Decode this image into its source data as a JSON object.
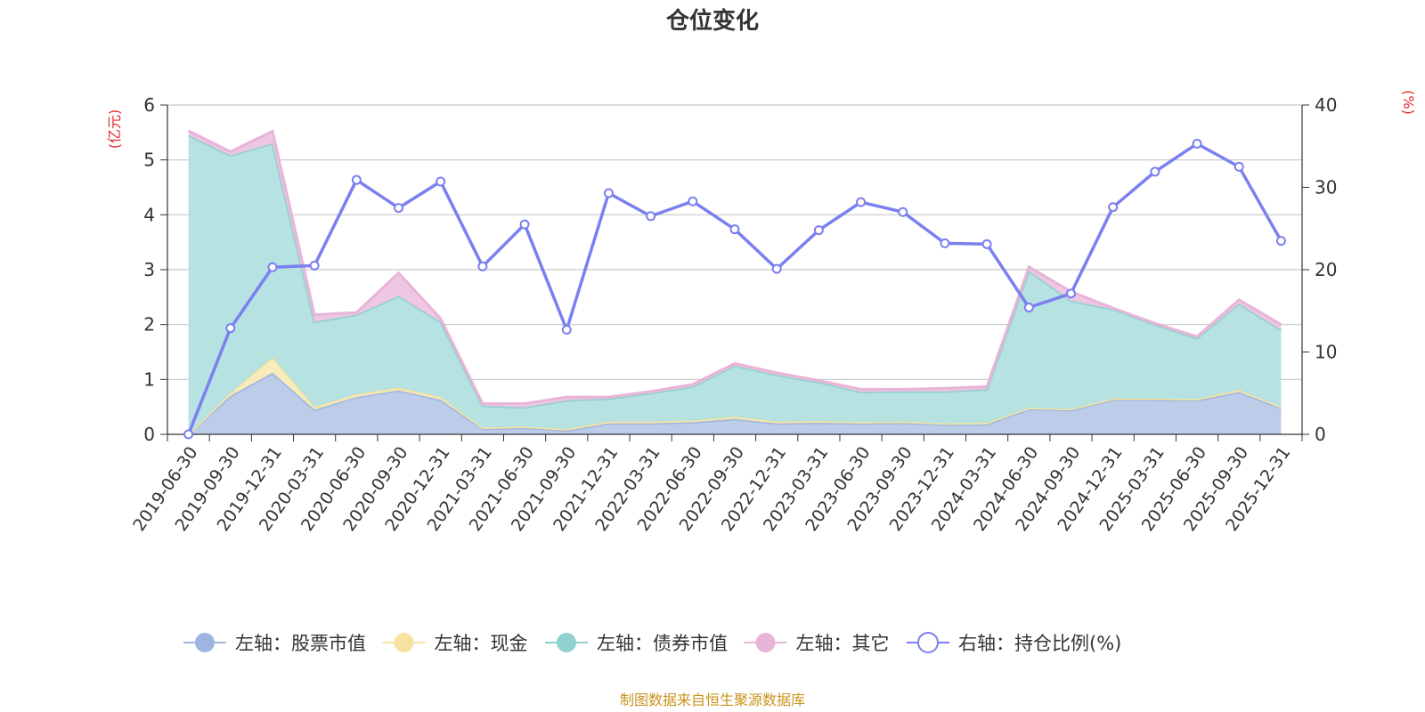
{
  "title": "仓位变化",
  "source": "制图数据来自恒生聚源数据库",
  "left_axis_unit": "(亿元)",
  "right_axis_unit": "(%)",
  "chart_data": {
    "type": "area",
    "title": "仓位变化",
    "categories": [
      "2019-06-30",
      "2019-09-30",
      "2019-12-31",
      "2020-03-31",
      "2020-06-30",
      "2020-09-30",
      "2020-12-31",
      "2021-03-31",
      "2021-06-30",
      "2021-09-30",
      "2021-12-31",
      "2022-03-31",
      "2022-06-30",
      "2022-09-30",
      "2022-12-31",
      "2023-03-31",
      "2023-06-30",
      "2023-09-30",
      "2023-12-31",
      "2024-03-31",
      "2024-06-30",
      "2024-09-30",
      "2024-12-31",
      "2025-03-31",
      "2025-06-30",
      "2025-09-30",
      "2025-12-31"
    ],
    "left_axis": {
      "ylim": [
        0,
        6
      ],
      "ticks": [
        0,
        1,
        2,
        3,
        4,
        5,
        6
      ],
      "unit": "亿元"
    },
    "right_axis": {
      "ylim": [
        0,
        40
      ],
      "ticks": [
        0,
        10,
        20,
        30,
        40
      ],
      "unit": "%"
    },
    "series": [
      {
        "name": "左轴：股票市值",
        "axis": "left",
        "stacked": true,
        "color": "#9db5e0",
        "fill": "#b8c9e8",
        "values": [
          0,
          0.7,
          1.12,
          0.45,
          0.68,
          0.8,
          0.63,
          0.1,
          0.12,
          0.07,
          0.2,
          0.2,
          0.22,
          0.28,
          0.2,
          0.21,
          0.2,
          0.21,
          0.18,
          0.18,
          0.46,
          0.44,
          0.63,
          0.63,
          0.62,
          0.77,
          0.48
        ]
      },
      {
        "name": "左轴：现金",
        "axis": "left",
        "stacked": true,
        "color": "#f7e3a1",
        "fill": "#f9ebb8",
        "values": [
          0,
          0.05,
          0.28,
          0.05,
          0.05,
          0.05,
          0.05,
          0.02,
          0.02,
          0.02,
          0.03,
          0.03,
          0.03,
          0.04,
          0.03,
          0.03,
          0.02,
          0.02,
          0.02,
          0.03,
          0.02,
          0.02,
          0.02,
          0.02,
          0.02,
          0.04,
          0.02
        ]
      },
      {
        "name": "左轴：债券市值",
        "axis": "left",
        "stacked": true,
        "color": "#8fd0d0",
        "fill": "#b2e0df",
        "values": [
          5.45,
          4.33,
          3.9,
          1.55,
          1.45,
          1.67,
          1.37,
          0.4,
          0.35,
          0.53,
          0.42,
          0.52,
          0.62,
          0.93,
          0.85,
          0.71,
          0.55,
          0.55,
          0.58,
          0.61,
          2.5,
          1.97,
          1.63,
          1.35,
          1.11,
          1.57,
          1.4
        ]
      },
      {
        "name": "左轴：其它",
        "axis": "left",
        "stacked": true,
        "color": "#e8b4d8",
        "fill": "#edc5e0",
        "values": [
          0.08,
          0.07,
          0.22,
          0.13,
          0.04,
          0.42,
          0.06,
          0.04,
          0.07,
          0.06,
          0.03,
          0.03,
          0.04,
          0.04,
          0.04,
          0.03,
          0.05,
          0.04,
          0.06,
          0.05,
          0.07,
          0.17,
          0.02,
          0.02,
          0.03,
          0.07,
          0.1
        ]
      },
      {
        "name": "右轴：持仓比例(%)",
        "axis": "right",
        "type": "line",
        "color": "#7b7ff0",
        "values": [
          0,
          12.9,
          20.3,
          20.5,
          30.9,
          27.5,
          30.7,
          20.4,
          25.5,
          12.7,
          29.3,
          26.5,
          28.3,
          24.9,
          20.1,
          24.8,
          28.2,
          27,
          23.2,
          23.1,
          15.4,
          17.1,
          27.6,
          31.9,
          35.3,
          32.5,
          23.5
        ]
      }
    ],
    "legend_position": "bottom-center",
    "grid": true
  }
}
